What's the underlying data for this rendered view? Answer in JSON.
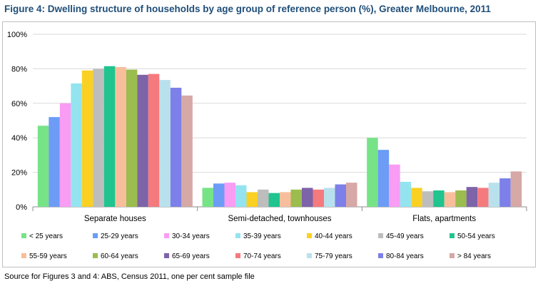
{
  "title": "Figure 4: Dwelling structure of households by age group of reference person (%), Greater Melbourne, 2011",
  "source": "Source for Figures 3 and 4: ABS, Census 2011, one per cent sample file",
  "chart_data": {
    "type": "bar",
    "title": "",
    "xlabel": "",
    "ylabel": "",
    "ylim": [
      0,
      100
    ],
    "y_ticks": [
      "0%",
      "20%",
      "40%",
      "60%",
      "80%",
      "100%"
    ],
    "y_tick_values": [
      0,
      20,
      40,
      60,
      80,
      100
    ],
    "grid": true,
    "legend_position": "bottom",
    "categories": [
      "Separate houses",
      "Semi-detached, townhouses",
      "Flats, apartments"
    ],
    "series": [
      {
        "name": "< 25 years",
        "color": "#77e387",
        "values": [
          47,
          11,
          40
        ]
      },
      {
        "name": "25-29 years",
        "color": "#6c9cf6",
        "values": [
          52,
          13.5,
          33
        ]
      },
      {
        "name": "30-34 years",
        "color": "#f99cf4",
        "values": [
          60,
          14,
          24.5
        ]
      },
      {
        "name": "35-39 years",
        "color": "#94e4f0",
        "values": [
          71.5,
          12.5,
          14.5
        ]
      },
      {
        "name": "40-44 years",
        "color": "#fad023",
        "values": [
          79,
          8.5,
          11
        ]
      },
      {
        "name": "45-49 years",
        "color": "#bdbdbd",
        "values": [
          80,
          10,
          9
        ]
      },
      {
        "name": "50-54 years",
        "color": "#20c48e",
        "values": [
          81.5,
          8,
          9.5
        ]
      },
      {
        "name": "55-59 years",
        "color": "#f8be9c",
        "values": [
          81,
          8.5,
          8.5
        ]
      },
      {
        "name": "60-64 years",
        "color": "#9bbc4e",
        "values": [
          79.5,
          10,
          9.5
        ]
      },
      {
        "name": "65-69 years",
        "color": "#7d63a8",
        "values": [
          76.5,
          11,
          11.5
        ]
      },
      {
        "name": "70-74 years",
        "color": "#f57a7e",
        "values": [
          77,
          10,
          11
        ]
      },
      {
        "name": "75-79 years",
        "color": "#b9e1ed",
        "values": [
          73.5,
          11,
          14
        ]
      },
      {
        "name": "80-84 years",
        "color": "#7c80e8",
        "values": [
          69,
          13,
          16.5
        ]
      },
      {
        "name": "> 84 years",
        "color": "#d6a8a6",
        "values": [
          64.5,
          14,
          20.5
        ]
      }
    ]
  }
}
